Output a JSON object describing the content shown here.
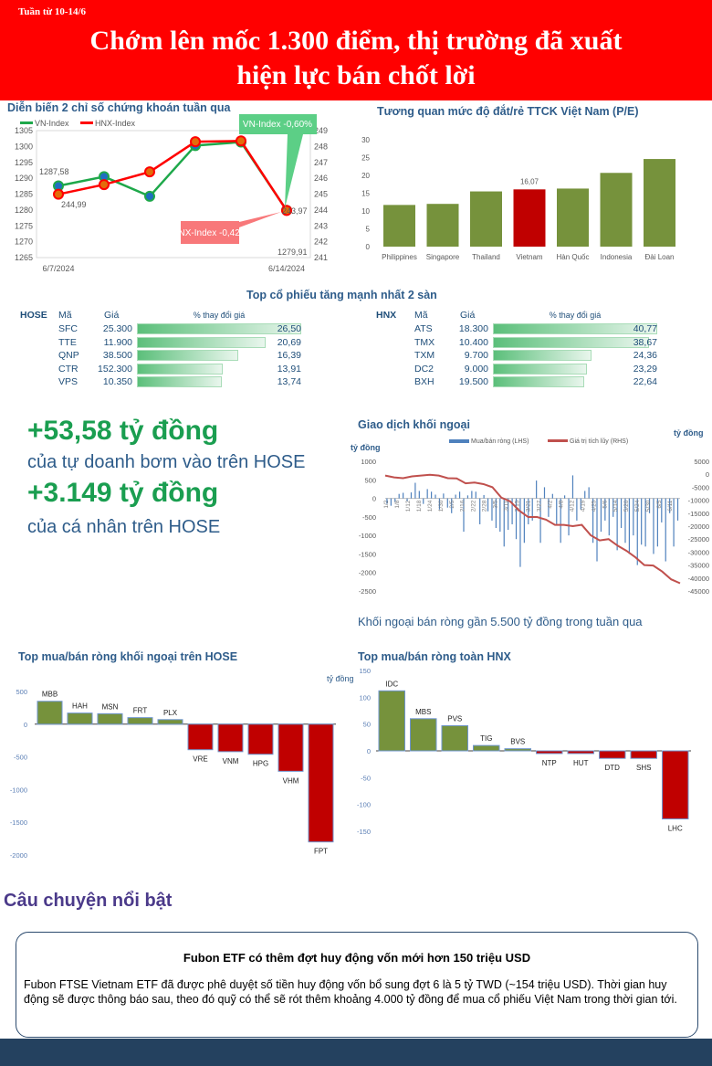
{
  "header": {
    "week": "Tuần từ 10-14/6",
    "title_line1": "Chớm lên mốc 1.300 điểm, thị trường đã xuất",
    "title_line2": "hiện lực bán chốt lời"
  },
  "colors": {
    "green_bar": "#76923c",
    "red_bar": "#c00000",
    "vn_line": "#1ea84a",
    "hnx_line": "#ff0000",
    "foreign_bar": "#4f81bd",
    "foreign_line": "#c0504d",
    "header_bg": "#ff0000"
  },
  "chart_data": [
    {
      "id": "index",
      "type": "line",
      "title": "Diễn biến 2 chỉ số chứng khoán tuần qua",
      "x": [
        "6/7/2024",
        "6/10/2024",
        "6/11/2024",
        "6/12/2024",
        "6/13/2024",
        "6/14/2024"
      ],
      "xtick_labels": [
        "6/7/2024",
        "6/14/2024"
      ],
      "series": [
        {
          "name": "VN-Index",
          "axis": "left",
          "values": [
            1287.58,
            1290.5,
            1284.3,
            1300.3,
            1301.4,
            1279.91
          ]
        },
        {
          "name": "HNX-Index",
          "axis": "right",
          "values": [
            244.99,
            245.6,
            246.4,
            248.3,
            248.35,
            243.97
          ]
        }
      ],
      "ylim_left": [
        1265,
        1305
      ],
      "yticks_left": [
        1305,
        1300,
        1295,
        1290,
        1285,
        1280,
        1275,
        1270,
        1265
      ],
      "ylim_right": [
        241,
        249
      ],
      "yticks_right": [
        249,
        248,
        247,
        246,
        245,
        244,
        243,
        242,
        241
      ],
      "labels": {
        "vn_start": "1287,58",
        "hnx_start": "244,99",
        "hnx_end": "243,97",
        "vn_end": "1279,91"
      },
      "callouts": {
        "vn": "VN-Index -0,60%",
        "hnx": "HNX-Index -0,42%"
      }
    },
    {
      "id": "pe",
      "type": "bar",
      "title": "Tương quan mức độ đắt/rẻ TTCK Việt Nam (P/E)",
      "categories": [
        "Philippines",
        "Singapore",
        "Thailand",
        "Vietnam",
        "Hàn Quốc",
        "Indonesia",
        "Đài Loan"
      ],
      "values": [
        11.7,
        12.0,
        15.5,
        16.07,
        16.3,
        20.7,
        24.6
      ],
      "highlight": "Vietnam",
      "data_label": "16,07",
      "ylim": [
        0,
        30
      ],
      "yticks": [
        30,
        25,
        20,
        15,
        10,
        5,
        0
      ]
    },
    {
      "id": "foreign",
      "type": "bar+line",
      "title": "Giao dịch khối ngoại",
      "ylabel_left": "tỷ đồng",
      "ylabel_right": "tỷ đồng",
      "legend": [
        "Mua/bán ròng (LHS)",
        "Giá trị tích lũy (RHS)"
      ],
      "ylim_left": [
        -2500,
        1000
      ],
      "yticks_left": [
        1000,
        500,
        0,
        -500,
        -1000,
        -1500,
        -2000,
        -2500
      ],
      "ylim_right": [
        -45000,
        5000
      ],
      "yticks_right": [
        5000,
        0,
        -5000,
        -10000,
        -15000,
        -20000,
        -25000,
        -30000,
        -35000,
        -40000,
        -45000
      ],
      "xtick_labels": [
        "1/2",
        "1/8",
        "1/12",
        "1/18",
        "1/24",
        "1/30",
        "2/5",
        "2/16",
        "2/22",
        "2/28",
        "3/5",
        "3/11",
        "3/15",
        "3/21",
        "3/27",
        "4/2",
        "4/8",
        "4/12",
        "4/19",
        "4/25",
        "5/6",
        "5/14",
        "5/20",
        "5/24",
        "5/30",
        "6/5",
        "6/11"
      ],
      "net_values": [
        -150,
        -200,
        -100,
        120,
        150,
        -80,
        160,
        420,
        200,
        -150,
        250,
        180,
        100,
        -300,
        130,
        -250,
        -400,
        100,
        180,
        -900,
        80,
        200,
        180,
        -700,
        90,
        -350,
        -600,
        -800,
        -900,
        -1300,
        -850,
        -700,
        -1100,
        -1850,
        -1200,
        -700,
        -600,
        480,
        -1200,
        300,
        -500,
        120,
        -700,
        -1200,
        80,
        -1000,
        620,
        -600,
        -300,
        200,
        300,
        -1200,
        -1700,
        -900,
        -600,
        -1000,
        -500,
        -1400,
        -800,
        -1200,
        -1500,
        -1000,
        -1800,
        -1250,
        -1300,
        -400,
        -1500,
        -1300,
        -650,
        -1700,
        -400,
        -1300,
        -600
      ],
      "cumulative": [
        -500,
        -1200,
        -1500,
        -800,
        -500,
        -200,
        -500,
        -1500,
        -1600,
        -3500,
        -3200,
        -3800,
        -5000,
        -9000,
        -10500,
        -14000,
        -16500,
        -16500,
        -17500,
        -19500,
        -19500,
        -20000,
        -19500,
        -23500,
        -25500,
        -25000,
        -27500,
        -29500,
        -32000,
        -35000,
        -35200,
        -37500,
        -40500,
        -42000
      ]
    },
    {
      "id": "hose_foreign",
      "type": "bar",
      "title": "Top mua/bán ròng khối ngoại trên HOSE",
      "categories": [
        "MBB",
        "HAH",
        "MSN",
        "FRT",
        "PLX",
        "VRE",
        "VNM",
        "HPG",
        "VHM",
        "FPT"
      ],
      "values": [
        350,
        170,
        160,
        100,
        70,
        -390,
        -420,
        -460,
        -720,
        -1800
      ],
      "ylim": [
        -2000,
        500
      ],
      "yticks": [
        500,
        0,
        -500,
        -1000,
        -1500,
        -2000
      ]
    },
    {
      "id": "hnx_foreign",
      "type": "bar",
      "title": "Top mua/bán ròng toàn HNX",
      "ylabel": "tỷ đồng",
      "categories": [
        "IDC",
        "MBS",
        "PVS",
        "TIG",
        "BVS",
        "NTP",
        "HUT",
        "DTD",
        "SHS",
        "LHC"
      ],
      "values": [
        112,
        60,
        47,
        10,
        4,
        -5,
        -5,
        -14,
        -14,
        -127
      ],
      "ylim": [
        -150,
        150
      ],
      "yticks": [
        150,
        100,
        50,
        0,
        -50,
        -100,
        -150
      ]
    }
  ],
  "top_gainers": {
    "title": "Top cổ phiếu tăng mạnh nhất 2 sàn",
    "col_code": "Mã",
    "col_price": "Giá",
    "col_pct": "% thay đổi giá",
    "hose": {
      "exchange": "HOSE",
      "rows": [
        {
          "code": "SFC",
          "price": "25.300",
          "pct": "26,50",
          "value": 26.5
        },
        {
          "code": "TTE",
          "price": "11.900",
          "pct": "20,69",
          "value": 20.69
        },
        {
          "code": "QNP",
          "price": "38.500",
          "pct": "16,39",
          "value": 16.39
        },
        {
          "code": "CTR",
          "price": "152.300",
          "pct": "13,91",
          "value": 13.91
        },
        {
          "code": "VPS",
          "price": "10.350",
          "pct": "13,74",
          "value": 13.74
        }
      ]
    },
    "hnx": {
      "exchange": "HNX",
      "rows": [
        {
          "code": "ATS",
          "price": "18.300",
          "pct": "40,77",
          "value": 40.77
        },
        {
          "code": "TMX",
          "price": "10.400",
          "pct": "38,67",
          "value": 38.67
        },
        {
          "code": "TXM",
          "price": "9.700",
          "pct": "24,36",
          "value": 24.36
        },
        {
          "code": "DC2",
          "price": "9.000",
          "pct": "23,29",
          "value": 23.29
        },
        {
          "code": "BXH",
          "price": "19.500",
          "pct": "22,64",
          "value": 22.64
        }
      ]
    }
  },
  "highlights": {
    "prop_value": "+53,58 tỷ đồng",
    "prop_text": "của tự doanh bơm vào trên HOSE",
    "retail_value": "+3.149 tỷ đồng",
    "retail_text": "của cá nhân trên HOSE"
  },
  "foreign_caption": "Khối ngoại bán ròng gần 5.500 tỷ đồng trong tuần qua",
  "story": {
    "section": "Câu chuyện nổi bật",
    "headline": "Fubon ETF có thêm đợt huy động vốn mới hơn 150 triệu USD",
    "body": "Fubon FTSE Vietnam ETF đã được phê duyệt số tiền huy động vốn bổ sung đợt 6 là 5 tỷ TWD (~154 triệu USD). Thời gian huy động sẽ được thông báo sau, theo đó quỹ có thể sẽ rót thêm khoảng 4.000 tỷ đồng để mua cổ phiếu Việt Nam trong thời gian tới."
  }
}
